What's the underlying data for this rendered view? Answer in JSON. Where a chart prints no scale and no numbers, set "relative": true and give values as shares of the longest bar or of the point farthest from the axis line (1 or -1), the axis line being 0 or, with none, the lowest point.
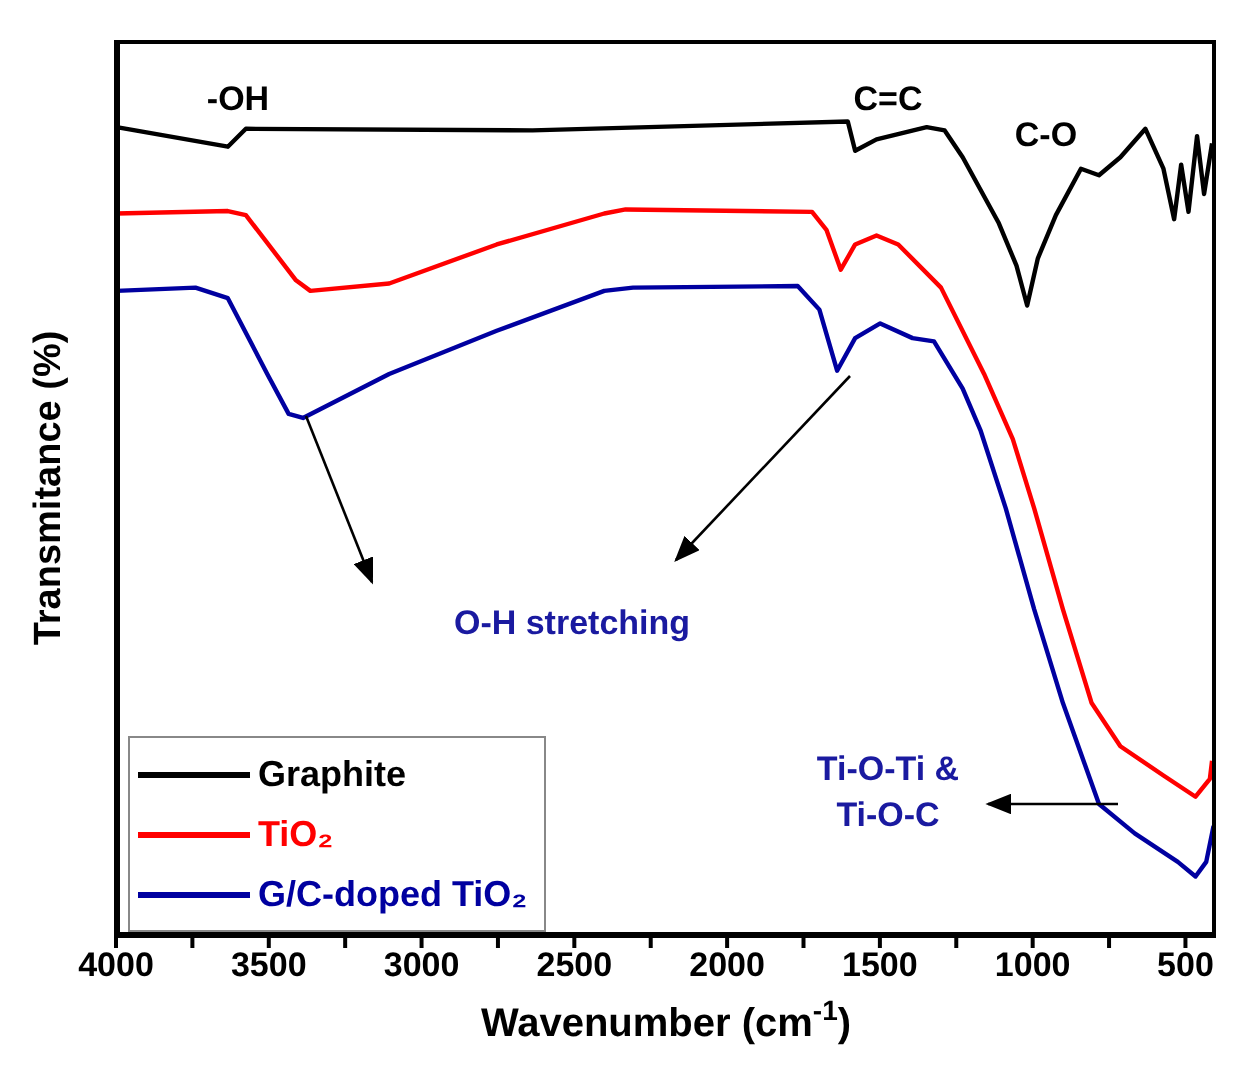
{
  "chart_data": {
    "type": "line",
    "relative": true,
    "xlabel": "Wavenumber (cm$^{-1}$)",
    "ylabel": "Transmitance (%)",
    "xlim": [
      4000,
      400
    ],
    "xticks": [
      4000,
      {
        "value": 3750,
        "label": null
      },
      3500,
      {
        "value": 3250,
        "label": null
      },
      3000,
      {
        "value": 2750,
        "label": null
      },
      2500,
      {
        "value": 2250,
        "label": null
      },
      2000,
      {
        "value": 1750,
        "label": null
      },
      1500,
      {
        "value": 1250,
        "label": null
      },
      1000,
      {
        "value": 750,
        "label": null
      },
      500
    ],
    "legend": "bottom left",
    "grid": false,
    "marker": "none",
    "line_style": "solid",
    "annotations": [
      "-OH",
      "C=C",
      "C-O",
      "O-H stretching",
      "Ti-O-Ti &\nTi-O-C"
    ],
    "series": [
      {
        "name": "Graphite",
        "color": "#000000",
        "x": [
          3998,
          3634,
          3575,
          2637,
          1605,
          1581,
          1511,
          1347,
          1288,
          1229,
          1112,
          1053,
          1018,
          983,
          924,
          842,
          783,
          713,
          631,
          572,
          537,
          514,
          490,
          462,
          439,
          413
        ],
        "values": [
          0.993,
          0.969,
          0.991,
          0.989,
          1,
          0.964,
          0.978,
          0.993,
          0.989,
          0.956,
          0.876,
          0.823,
          0.774,
          0.832,
          0.885,
          0.942,
          0.934,
          0.956,
          0.991,
          0.942,
          0.88,
          0.947,
          0.889,
          0.982,
          0.911,
          0.973
        ]
      },
      {
        "name": "TiO₂",
        "color": "#ff0000",
        "x": [
          3998,
          3634,
          3575,
          3411,
          3364,
          3106,
          2754,
          2402,
          2332,
          1722,
          1675,
          1628,
          1581,
          1511,
          1440,
          1300,
          1159,
          1065,
          995,
          901,
          807,
          713,
          572,
          467,
          420,
          413
        ],
        "values": [
          0.887,
          0.89,
          0.885,
          0.805,
          0.792,
          0.801,
          0.849,
          0.887,
          0.892,
          0.889,
          0.867,
          0.818,
          0.849,
          0.86,
          0.849,
          0.796,
          0.69,
          0.61,
          0.525,
          0.401,
          0.286,
          0.233,
          0.197,
          0.171,
          0.193,
          0.215
        ]
      },
      {
        "name": "G/C-doped TiO₂",
        "color": "#0000a0",
        "x": [
          3998,
          3740,
          3634,
          3505,
          3435,
          3388,
          3106,
          2754,
          2402,
          2308,
          1769,
          1698,
          1640,
          1581,
          1499,
          1393,
          1323,
          1229,
          1170,
          1088,
          995,
          901,
          783,
          666,
          525,
          467,
          432,
          408
        ],
        "values": [
          0.792,
          0.796,
          0.783,
          0.69,
          0.641,
          0.636,
          0.69,
          0.743,
          0.792,
          0.796,
          0.798,
          0.769,
          0.694,
          0.734,
          0.752,
          0.734,
          0.73,
          0.672,
          0.62,
          0.525,
          0.401,
          0.286,
          0.162,
          0.126,
          0.091,
          0.073,
          0.091,
          0.135
        ]
      }
    ]
  }
}
